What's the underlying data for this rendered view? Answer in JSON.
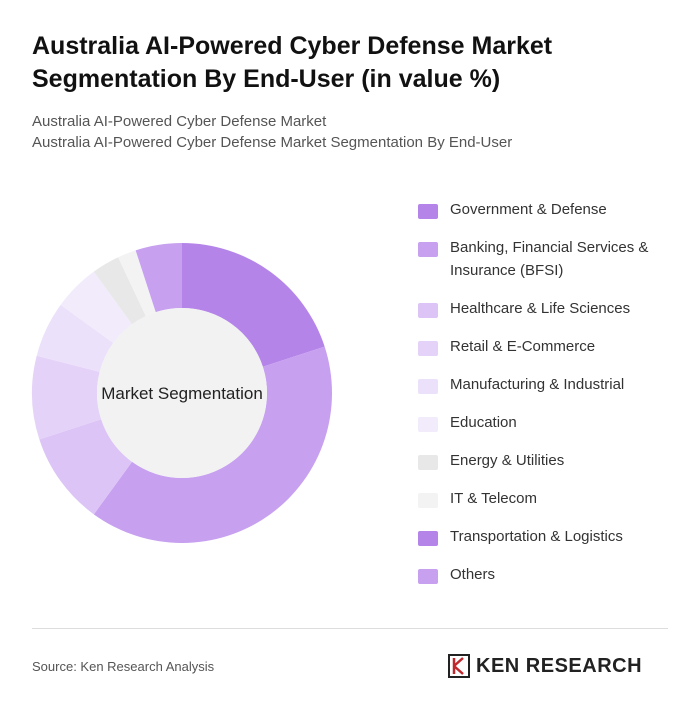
{
  "chart_data": {
    "type": "donut",
    "title": "Australia AI-Powered Cyber Defense Market Segmentation By End-User (in value %)",
    "subtitle": [
      "Australia AI-Powered Cyber Defense Market",
      "Australia AI-Powered Cyber Defense Market Segmentation By End-User"
    ],
    "center_label": "Market Segmentation",
    "categories": [
      "Government & Defense",
      "Banking, Financial Services & Insurance (BFSI)",
      "Healthcare & Life Sciences",
      "Retail & E-Commerce",
      "Manufacturing & Industrial",
      "Education",
      "Energy & Utilities",
      "IT & Telecom",
      "Transportation & Logistics",
      "Others"
    ],
    "values": [
      20,
      40,
      10,
      9,
      6,
      5,
      3,
      2,
      0,
      5
    ],
    "colors": [
      "#b584e9",
      "#c7a0f0",
      "#dcc5f6",
      "#e4d2f8",
      "#ece1fa",
      "#f1ebfb",
      "#e8e8e8",
      "#f3f3f3",
      "#b584e9",
      "#c7a0f0"
    ],
    "source": "Source: Ken Research Analysis",
    "brand": "KEN RESEARCH"
  }
}
